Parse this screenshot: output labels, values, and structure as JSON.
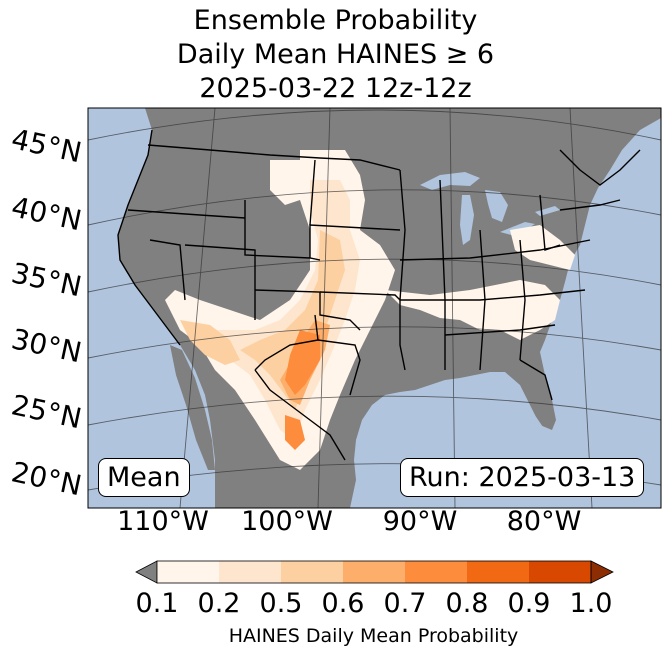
{
  "title": {
    "line1": "Ensemble Probability",
    "line2": "Daily Mean HAINES ≥ 6",
    "line3": "2025-03-22 12z-12z"
  },
  "map": {
    "lat_labels": [
      "45°N",
      "40°N",
      "35°N",
      "30°N",
      "25°N",
      "20°N"
    ],
    "lon_labels": [
      "110°W",
      "100°W",
      "90°W",
      "80°W"
    ],
    "left_box": "Mean",
    "right_box": "Run: 2025-03-13",
    "colors": {
      "ocean": "#b0c4de",
      "land_masked": "#808080",
      "lakes": "#b0c4de"
    }
  },
  "colorbar": {
    "ticks": [
      "0.1",
      "0.2",
      "0.5",
      "0.6",
      "0.7",
      "0.8",
      "0.9",
      "1.0"
    ],
    "label": "HAINES Daily Mean Probability",
    "colors": [
      "#fff5eb",
      "#fee6ce",
      "#fdd0a2",
      "#fdae6b",
      "#fd8d3c",
      "#f16913",
      "#d94801",
      "#8c2d04"
    ],
    "under_color": "#808080"
  }
}
